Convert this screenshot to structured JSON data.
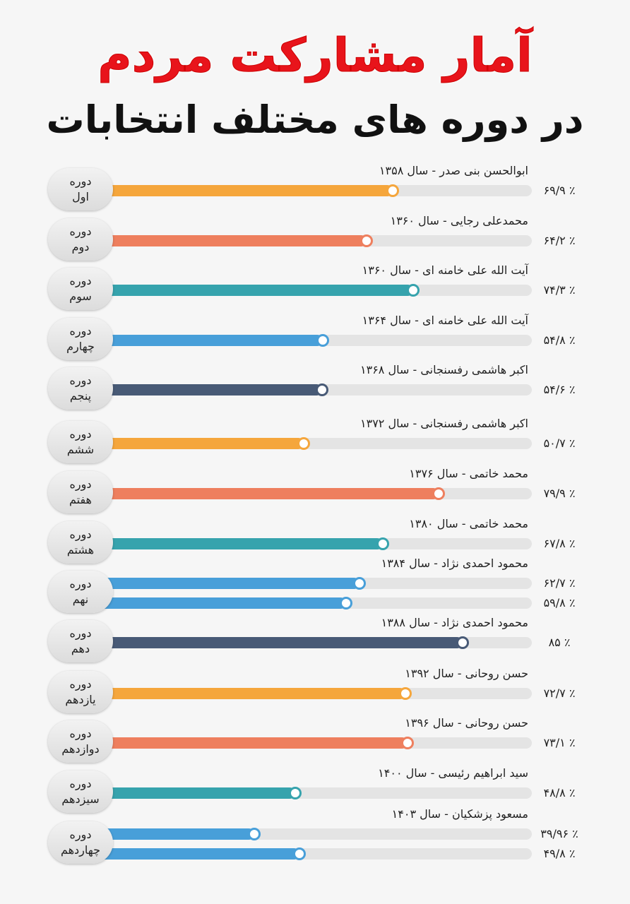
{
  "chart_data": {
    "type": "bar",
    "orientation": "horizontal",
    "title": "آمار مشارکت مردم",
    "subtitle": "در دوره های مختلف انتخابات",
    "xlim": [
      0,
      100
    ],
    "rows": [
      {
        "period": "دوره اول",
        "candidate": "ابوالحسن بنی صدر - سال ۱۳۵۸",
        "color": "#f5a63c",
        "values": [
          69.9
        ],
        "value_labels": [
          "۶۹/۹ ٪"
        ]
      },
      {
        "period": "دوره دوم",
        "candidate": "محمدعلی رجایی - سال ۱۳۶۰",
        "color": "#ee7f5e",
        "values": [
          64.2
        ],
        "value_labels": [
          "۶۴/۲ ٪"
        ]
      },
      {
        "period": "دوره سوم",
        "candidate": "آیت الله علی خامنه ای - سال ۱۳۶۰",
        "color": "#36a3ad",
        "values": [
          74.3
        ],
        "value_labels": [
          "۷۴/۳ ٪"
        ]
      },
      {
        "period": "دوره چهارم",
        "candidate": "آیت الله علی خامنه ای - سال ۱۳۶۴",
        "color": "#489fd9",
        "values": [
          54.8
        ],
        "value_labels": [
          "۵۴/۸ ٪"
        ]
      },
      {
        "period": "دوره پنجم",
        "candidate": "اکبر هاشمی رفسنجانی - سال ۱۳۶۸",
        "color": "#485a76",
        "values": [
          54.6
        ],
        "value_labels": [
          "۵۴/۶ ٪"
        ]
      },
      {
        "period": "دوره ششم",
        "candidate": "اکبر هاشمی رفسنجانی - سال ۱۳۷۲",
        "color": "#f5a63c",
        "values": [
          50.7
        ],
        "value_labels": [
          "۵۰/۷ ٪"
        ]
      },
      {
        "period": "دوره هفتم",
        "candidate": "محمد خاتمی - سال ۱۳۷۶",
        "color": "#ee7f5e",
        "values": [
          79.9
        ],
        "value_labels": [
          "۷۹/۹ ٪"
        ]
      },
      {
        "period": "دوره هشتم",
        "candidate": "محمد خاتمی - سال ۱۳۸۰",
        "color": "#36a3ad",
        "values": [
          67.8
        ],
        "value_labels": [
          "۶۷/۸ ٪"
        ]
      },
      {
        "period": "دوره نهم",
        "candidate": "محمود احمدی نژاد - سال ۱۳۸۴",
        "color": "#489fd9",
        "values": [
          62.7,
          59.8
        ],
        "value_labels": [
          "۶۲/۷ ٪",
          "۵۹/۸ ٪"
        ]
      },
      {
        "period": "دوره دهم",
        "candidate": "محمود احمدی نژاد - سال ۱۳۸۸",
        "color": "#485a76",
        "values": [
          85
        ],
        "value_labels": [
          "۸۵ ٪"
        ]
      },
      {
        "period": "دوره یازدهم",
        "candidate": "حسن روحانی - سال ۱۳۹۲",
        "color": "#f5a63c",
        "values": [
          72.7
        ],
        "value_labels": [
          "۷۲/۷ ٪"
        ]
      },
      {
        "period": "دوره دوازدهم",
        "candidate": "حسن روحانی - سال ۱۳۹۶",
        "color": "#ee7f5e",
        "values": [
          73.1
        ],
        "value_labels": [
          "۷۳/۱ ٪"
        ]
      },
      {
        "period": "دوره سیزدهم",
        "candidate": "سید ابراهیم رئیسی - سال ۱۴۰۰",
        "color": "#36a3ad",
        "values": [
          48.8
        ],
        "value_labels": [
          "۴۸/۸ ٪"
        ]
      },
      {
        "period": "دوره چهاردهم",
        "candidate": "مسعود پزشکیان - سال ۱۴۰۳",
        "color": "#489fd9",
        "values": [
          39.96,
          49.8
        ],
        "value_labels": [
          "۳۹/۹۶ ٪",
          "۴۹/۸ ٪"
        ]
      }
    ]
  }
}
